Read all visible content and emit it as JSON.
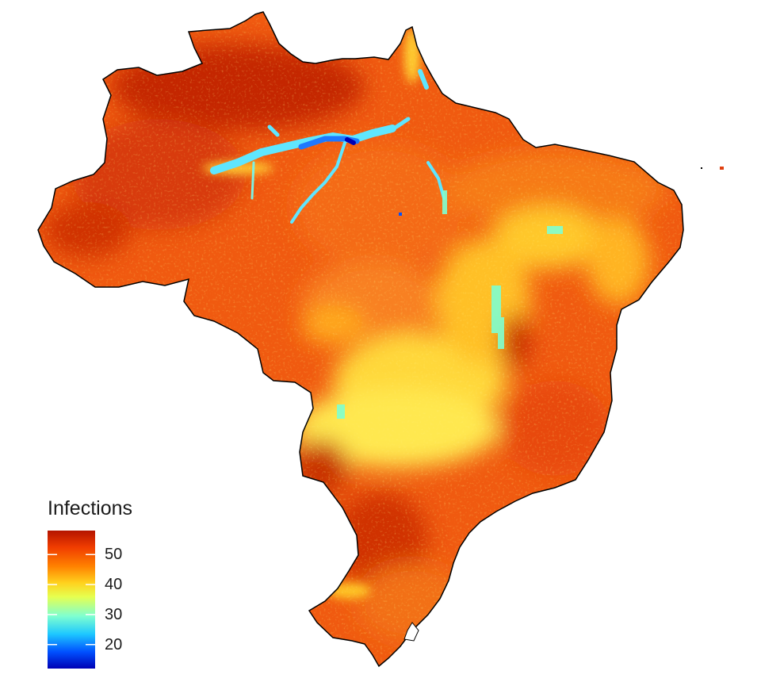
{
  "map": {
    "region": "Brazil",
    "fill_scale": "jet",
    "colors": {
      "high": "#b21a00",
      "mid_high": "#ff6a00",
      "mid": "#ffe03a",
      "mid_low": "#7fffd0",
      "low": "#1e90ff",
      "lowest": "#0000b4",
      "outline": "#000000"
    }
  },
  "legend": {
    "title": "Infections",
    "min": 12,
    "max": 58,
    "ticks": [
      {
        "label": "50",
        "value": 50
      },
      {
        "label": "40",
        "value": 40
      },
      {
        "label": "30",
        "value": 30
      },
      {
        "label": "20",
        "value": 20
      }
    ]
  }
}
